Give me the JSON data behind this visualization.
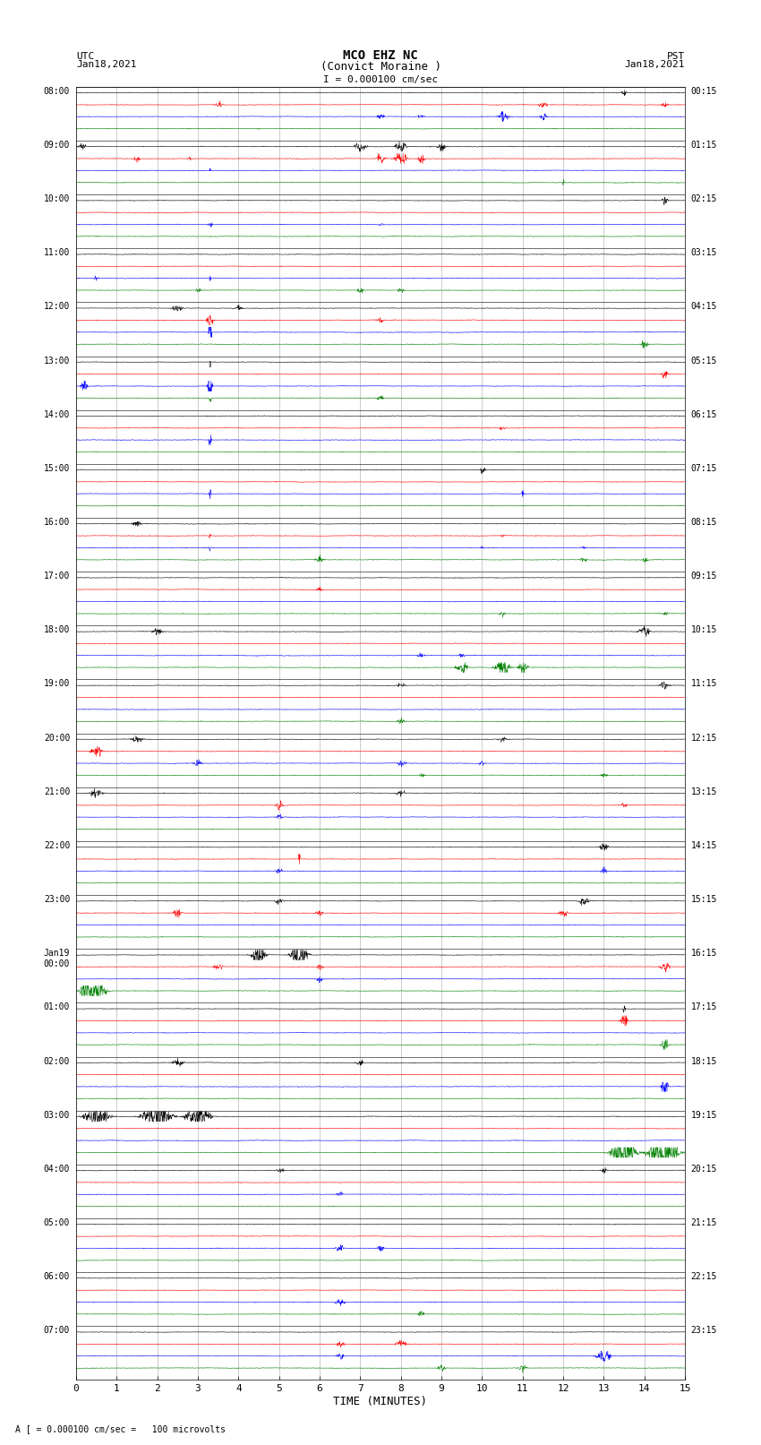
{
  "title_line1": "MCO EHZ NC",
  "title_line2": "(Convict Moraine )",
  "scale_text": "I = 0.000100 cm/sec",
  "utc_label": "UTC",
  "utc_date": "Jan18,2021",
  "pst_label": "PST",
  "pst_date": "Jan18,2021",
  "bottom_label": "A [ = 0.000100 cm/sec =   100 microvolts",
  "xlabel": "TIME (MINUTES)",
  "xticks": [
    0,
    1,
    2,
    3,
    4,
    5,
    6,
    7,
    8,
    9,
    10,
    11,
    12,
    13,
    14,
    15
  ],
  "colors": [
    "black",
    "red",
    "blue",
    "green"
  ],
  "bg_color": "#ffffff",
  "plot_bg": "#ffffff",
  "noise_scale": 0.03,
  "figsize": [
    8.5,
    16.13
  ],
  "dpi": 100,
  "utc_labels": [
    "08:00",
    "09:00",
    "10:00",
    "11:00",
    "12:00",
    "13:00",
    "14:00",
    "15:00",
    "16:00",
    "17:00",
    "18:00",
    "19:00",
    "20:00",
    "21:00",
    "22:00",
    "23:00",
    "Jan19\n00:00",
    "01:00",
    "02:00",
    "03:00",
    "04:00",
    "05:00",
    "06:00",
    "07:00"
  ],
  "pst_labels": [
    "00:15",
    "01:15",
    "02:15",
    "03:15",
    "04:15",
    "05:15",
    "06:15",
    "07:15",
    "08:15",
    "09:15",
    "10:15",
    "11:15",
    "12:15",
    "13:15",
    "14:15",
    "15:15",
    "16:15",
    "17:15",
    "18:15",
    "19:15",
    "20:15",
    "21:15",
    "22:15",
    "23:15"
  ]
}
